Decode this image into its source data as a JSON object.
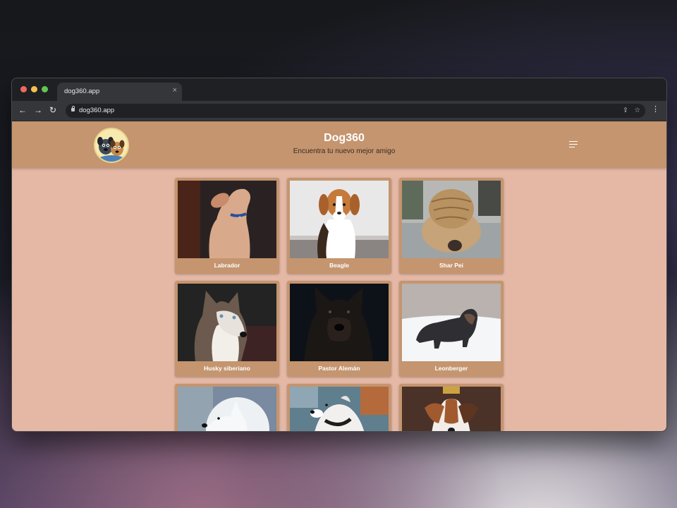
{
  "browser": {
    "tab_title": "dog360.app",
    "tab_close": "×",
    "url": "dog360.app",
    "icons": [
      "back-icon",
      "forward-icon",
      "reload-icon",
      "lock-icon",
      "share-icon",
      "bookmark-star-icon",
      "more-menu-icon"
    ]
  },
  "site": {
    "title": "Dog360",
    "subtitle": "Encuentra tu nuevo mejor amigo",
    "header_color": "#c4956f",
    "background_color": "#e5b8a6"
  },
  "dogs": [
    {
      "name": "Labrador"
    },
    {
      "name": "Beagle"
    },
    {
      "name": "Shar Pei"
    },
    {
      "name": "Husky siberiano"
    },
    {
      "name": "Pastor Alemán"
    },
    {
      "name": "Leonberger"
    },
    {
      "name": ""
    },
    {
      "name": ""
    },
    {
      "name": ""
    }
  ]
}
